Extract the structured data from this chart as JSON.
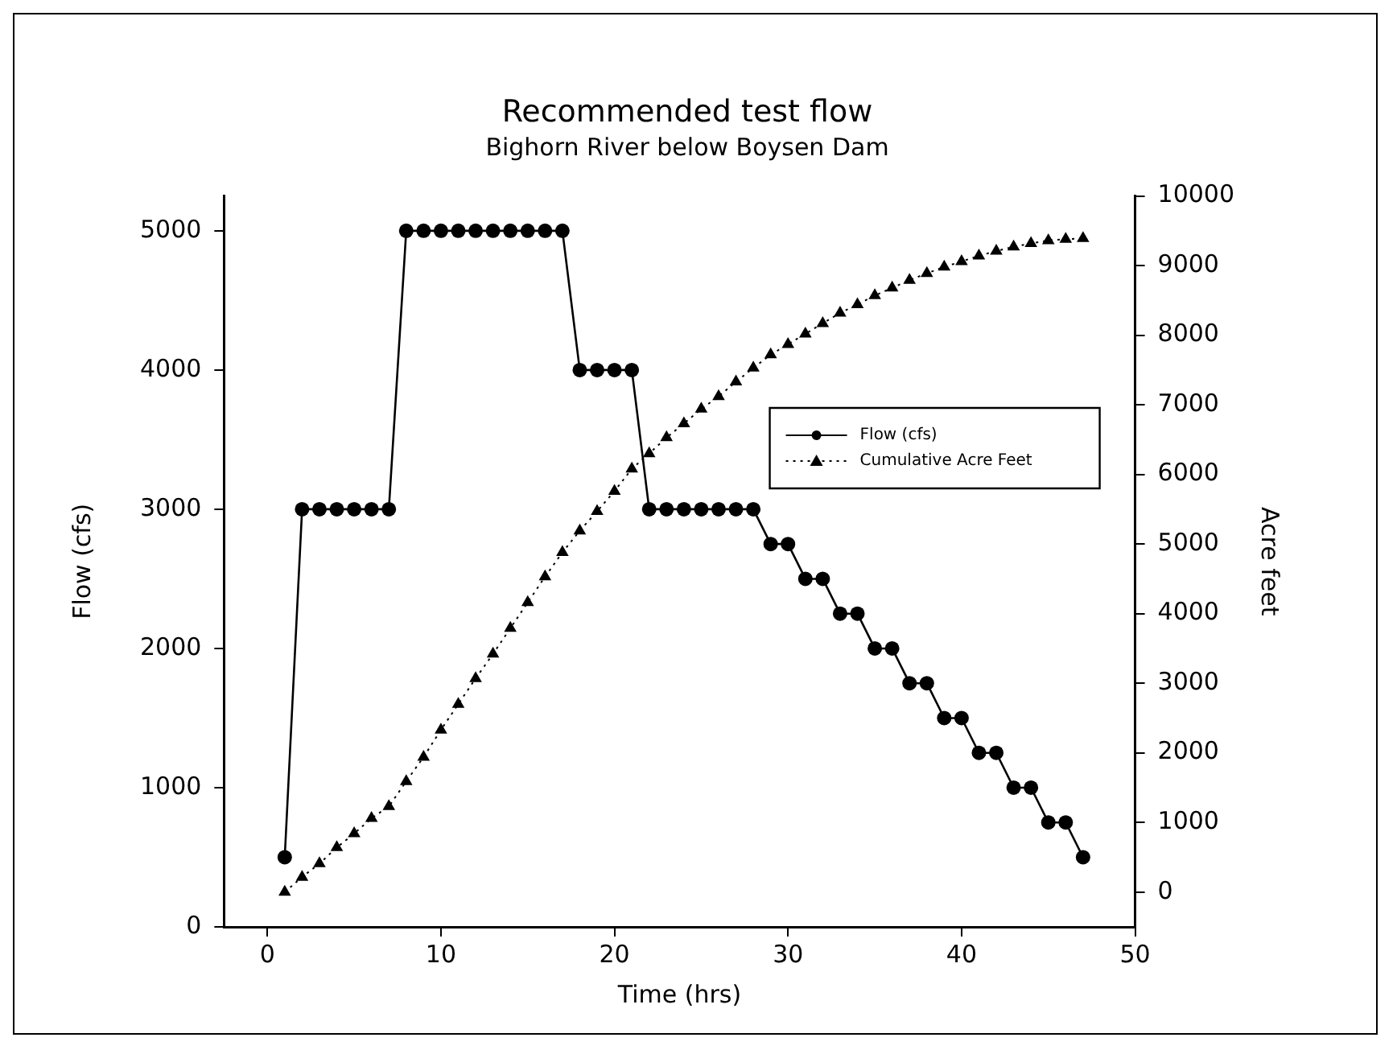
{
  "chart_data": {
    "type": "line",
    "title": "Recommended test flow",
    "subtitle": "Bighorn River below Boysen Dam",
    "xlabel": "Time (hrs)",
    "ylabel": "Flow (cfs)",
    "y2label": "Acre feet",
    "x": [
      1,
      2,
      3,
      4,
      5,
      6,
      7,
      8,
      9,
      10,
      11,
      12,
      13,
      14,
      15,
      16,
      17,
      18,
      19,
      20,
      21,
      22,
      23,
      24,
      25,
      26,
      27,
      28,
      29,
      30,
      31,
      32,
      33,
      34,
      35,
      36,
      37,
      38,
      39,
      40,
      41,
      42,
      43,
      44,
      45,
      46,
      47
    ],
    "xlim": [
      -2.5,
      50
    ],
    "xticks": [
      0,
      10,
      20,
      30,
      40,
      50
    ],
    "ylim": [
      0,
      5250
    ],
    "yticks": [
      0,
      1000,
      2000,
      3000,
      4000,
      5000
    ],
    "y2lim": [
      -500,
      10000
    ],
    "y2ticks": [
      0,
      1000,
      2000,
      3000,
      4000,
      5000,
      6000,
      7000,
      8000,
      9000,
      10000
    ],
    "grid": false,
    "legend": "right",
    "series": [
      {
        "name": "Flow (cfs)",
        "color": "#000000",
        "marker": "circle",
        "line_style": "solid",
        "values": [
          500,
          3000,
          3000,
          3000,
          3000,
          3000,
          3000,
          5000,
          5000,
          5000,
          5000,
          5000,
          5000,
          5000,
          5000,
          5000,
          5000,
          4000,
          4000,
          4000,
          4000,
          3000,
          3000,
          3000,
          3000,
          3000,
          3000,
          3000,
          2750,
          2750,
          2500,
          2500,
          2250,
          2250,
          2000,
          2000,
          1750,
          1750,
          1500,
          1500,
          1250,
          1250,
          1000,
          1000,
          750,
          750,
          500
        ]
      },
      {
        "name": "Cumulative Acre Feet",
        "color": "#000000",
        "marker": "triangle",
        "line_style": "dotted",
        "axis": "y2",
        "values": [
          0,
          215,
          410,
          640,
          840,
          1060,
          1230,
          1590,
          1940,
          2330,
          2700,
          3070,
          3420,
          3790,
          4160,
          4530,
          4880,
          5190,
          5470,
          5760,
          6080,
          6300,
          6530,
          6730,
          6940,
          7120,
          7330,
          7530,
          7720,
          7870,
          8020,
          8170,
          8320,
          8440,
          8570,
          8680,
          8790,
          8890,
          8980,
          9060,
          9140,
          9210,
          9270,
          9320,
          9360,
          9380,
          9390
        ]
      }
    ]
  }
}
